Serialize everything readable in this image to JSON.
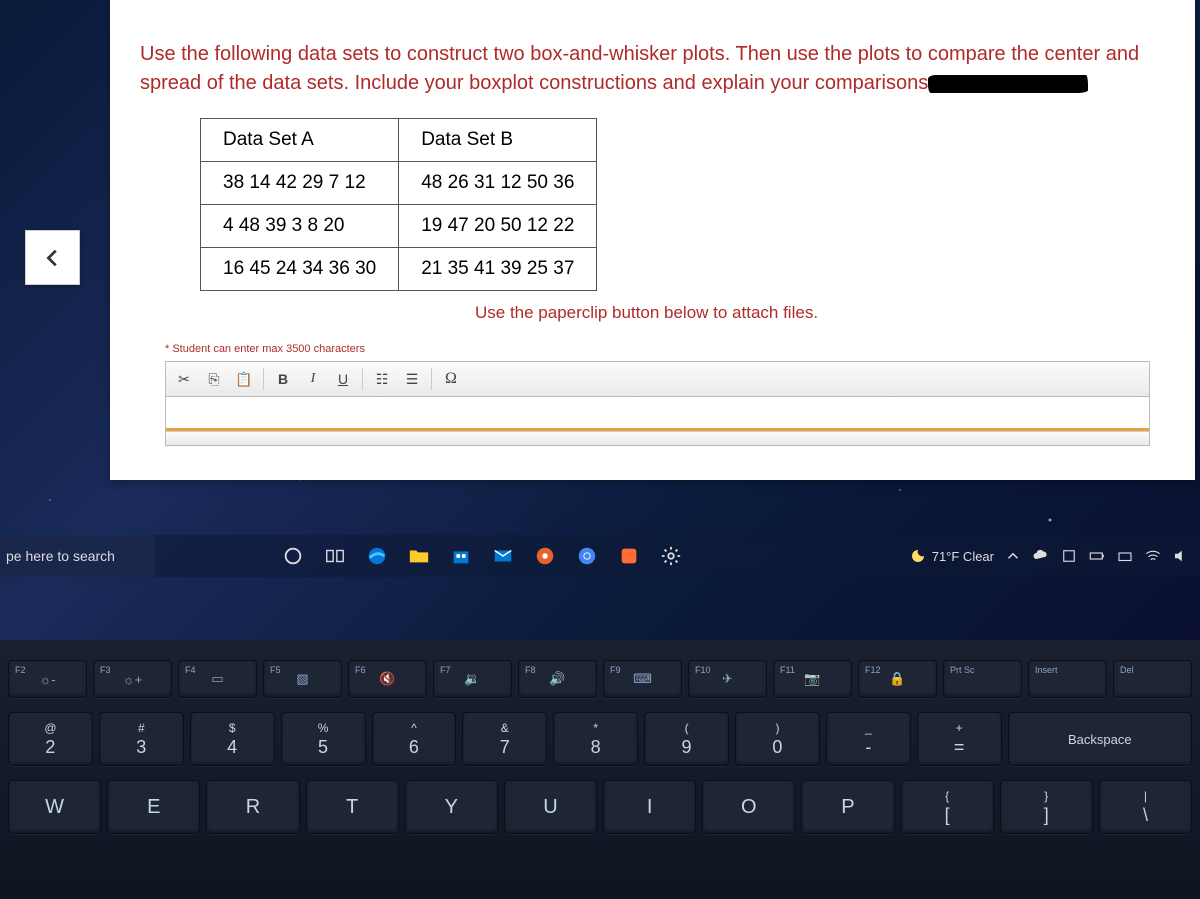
{
  "instructions": "Use the following data sets to construct two box-and-whisker plots. Then use the plots to compare the center and spread of the data sets. Include your boxplot constructions and explain your comparisons",
  "table": {
    "headers": [
      "Data Set A",
      "Data Set B"
    ],
    "rows": [
      [
        "38 14 42 29  7  12",
        "48 26 31 12 50 36"
      ],
      [
        "4  48 39  3   8  20",
        "19 47 20 50 12 22"
      ],
      [
        "16 45 24 34 36 30",
        "21 35 41 39 25 37"
      ]
    ]
  },
  "attach_note": "Use the paperclip button below to attach files.",
  "char_note": "* Student can enter max 3500 characters",
  "editor": {
    "buttons": {
      "cut": "✂",
      "copy": "📄",
      "paste": "📋",
      "bold": "B",
      "italic": "I",
      "underline": "U",
      "numlist": "≣",
      "bullist": "≡",
      "omega": "Ω"
    }
  },
  "taskbar": {
    "search_placeholder": "pe here to search",
    "weather": "71°F  Clear"
  },
  "keyboard": {
    "fnrow": [
      {
        "label": "F2",
        "glyph": "☼-"
      },
      {
        "label": "F3",
        "glyph": "☼+"
      },
      {
        "label": "F4",
        "glyph": "▭"
      },
      {
        "label": "F5",
        "glyph": "▧"
      },
      {
        "label": "F6",
        "glyph": "🔇"
      },
      {
        "label": "F7",
        "glyph": "🔉"
      },
      {
        "label": "F8",
        "glyph": "🔊"
      },
      {
        "label": "F9",
        "glyph": "⌨"
      },
      {
        "label": "F10",
        "glyph": "✈"
      },
      {
        "label": "F11",
        "glyph": "📷"
      },
      {
        "label": "F12",
        "glyph": "🔒"
      },
      {
        "label": "Prt Sc",
        "glyph": ""
      },
      {
        "label": "Insert",
        "glyph": ""
      },
      {
        "label": "Del",
        "glyph": ""
      }
    ],
    "numrow": [
      {
        "top": "@",
        "bot": "2"
      },
      {
        "top": "#",
        "bot": "3"
      },
      {
        "top": "$",
        "bot": "4"
      },
      {
        "top": "%",
        "bot": "5"
      },
      {
        "top": "^",
        "bot": "6"
      },
      {
        "top": "&",
        "bot": "7"
      },
      {
        "top": "*",
        "bot": "8"
      },
      {
        "top": "(",
        "bot": "9"
      },
      {
        "top": ")",
        "bot": "0"
      },
      {
        "top": "_",
        "bot": "-"
      },
      {
        "top": "+",
        "bot": "="
      }
    ],
    "backspace": "Backspace",
    "letters": [
      "W",
      "E",
      "R",
      "T",
      "Y",
      "U",
      "I",
      "O",
      "P"
    ],
    "brackets": [
      {
        "top": "{",
        "bot": "["
      },
      {
        "top": "}",
        "bot": "]"
      }
    ],
    "backslash": {
      "top": "|",
      "bot": "\\"
    }
  }
}
